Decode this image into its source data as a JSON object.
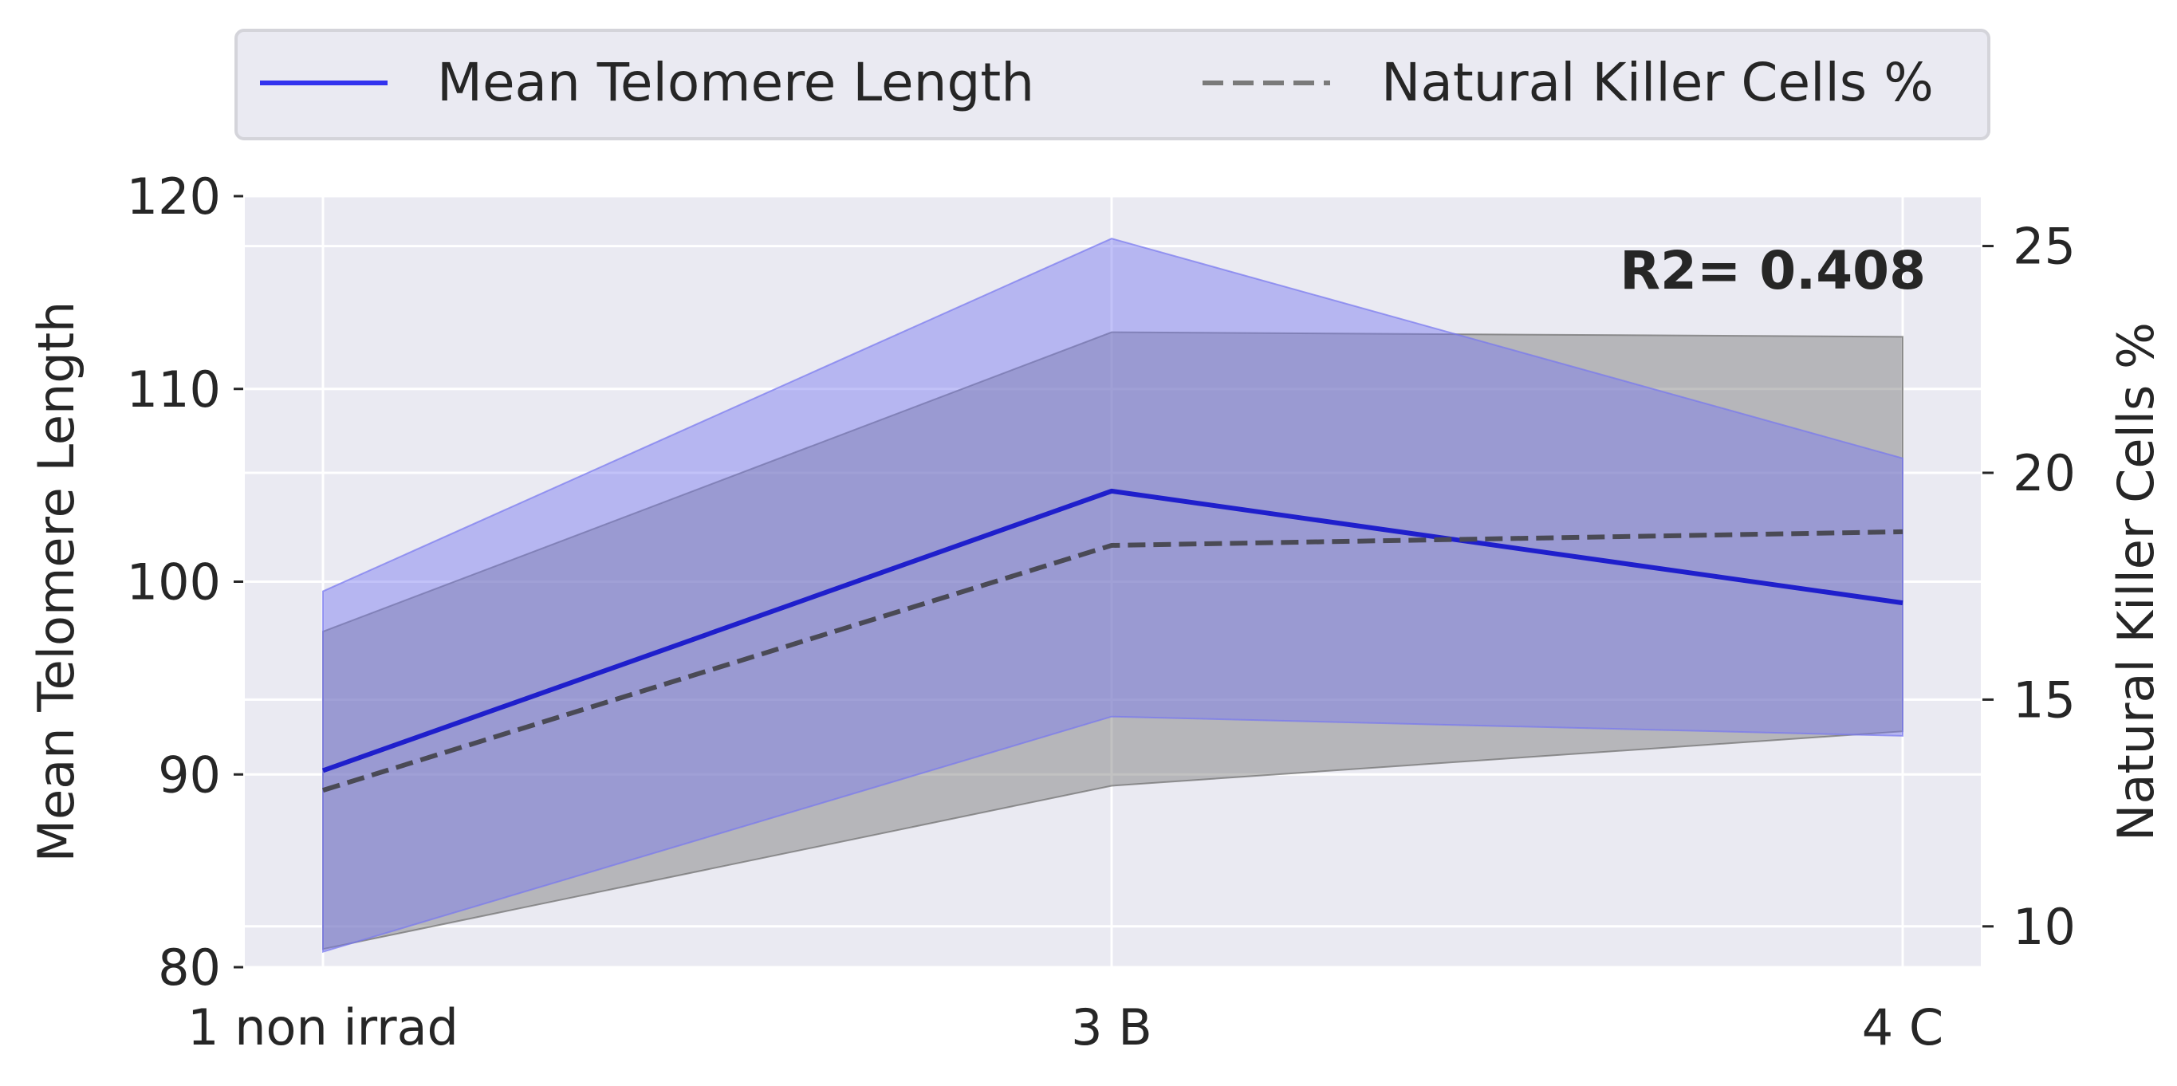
{
  "chart_data": {
    "type": "line",
    "title": "",
    "categories": [
      "1 non irrad",
      "3 B",
      "4 C"
    ],
    "x_axis": {
      "tick_labels": [
        "1 non irrad",
        "3 B",
        "4 C"
      ]
    },
    "y_left": {
      "label": "Mean Telomere Length",
      "range": [
        80,
        120
      ],
      "ticks": [
        "80",
        "90",
        "100",
        "110",
        "120"
      ]
    },
    "y_right": {
      "label": "Natural Killer Cells %",
      "range": [
        9.1,
        26.1
      ],
      "ticks": [
        "10",
        "15",
        "20",
        "25"
      ]
    },
    "series": [
      {
        "name": "Mean Telomere Length",
        "axis": "left",
        "style": "solid",
        "color": "#1f1fcc",
        "band_color": "#7878f0",
        "values": [
          90.2,
          104.7,
          98.9
        ],
        "band_upper": [
          99.5,
          117.8,
          106.4
        ],
        "band_lower": [
          80.8,
          93.0,
          92.0
        ]
      },
      {
        "name": "Natural Killer Cells %",
        "axis": "right",
        "style": "dashed",
        "color": "#4a4a55",
        "band_color": "#6e6e6e",
        "values": [
          13.0,
          18.4,
          18.7
        ],
        "band_upper": [
          16.5,
          23.1,
          23.0
        ],
        "band_lower": [
          9.5,
          13.1,
          14.3
        ]
      }
    ],
    "legend": {
      "placement": "top-center",
      "entries": [
        "Mean Telomere Length",
        "Natural Killer Cells %"
      ]
    },
    "annotation": {
      "text": "R2= 0.408"
    },
    "grid": true,
    "colors": {
      "plot_bg": "#eaeaf2",
      "grid": "#ffffff",
      "legend_bg": "#eaeaf2",
      "text": "#262626"
    }
  }
}
